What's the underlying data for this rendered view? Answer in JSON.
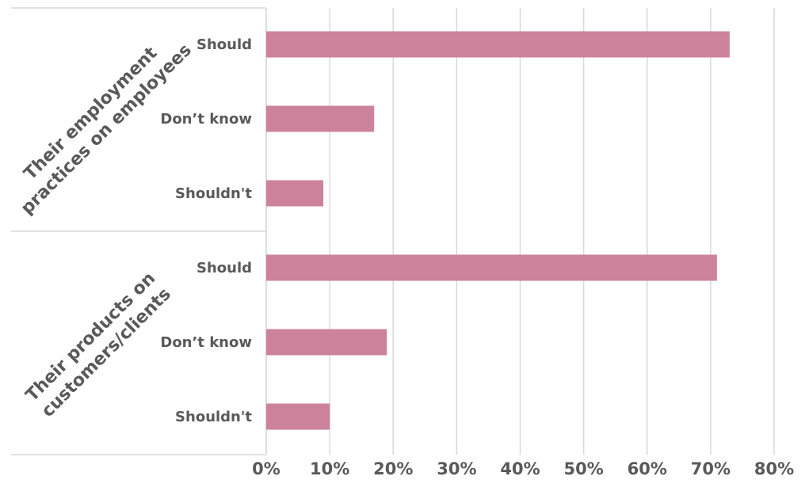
{
  "chart_data": {
    "type": "bar",
    "orientation": "horizontal",
    "xlim": [
      0,
      80
    ],
    "x_ticks": [
      0,
      10,
      20,
      30,
      40,
      50,
      60,
      70,
      80
    ],
    "x_tick_labels": [
      "0%",
      "10%",
      "20%",
      "30%",
      "40%",
      "50%",
      "60%",
      "70%",
      "80%"
    ],
    "grid": true,
    "bar_color": "#cd829c",
    "groups": [
      {
        "label_lines": [
          "Their employment",
          "practices on employees"
        ],
        "categories": [
          "Should",
          "Don’t know",
          "Shouldn't"
        ],
        "values": [
          73,
          17,
          9
        ]
      },
      {
        "label_lines": [
          "Their products on",
          "customers/clients"
        ],
        "categories": [
          "Should",
          "Don’t know",
          "Shouldn't"
        ],
        "values": [
          71,
          19,
          10
        ]
      }
    ]
  }
}
